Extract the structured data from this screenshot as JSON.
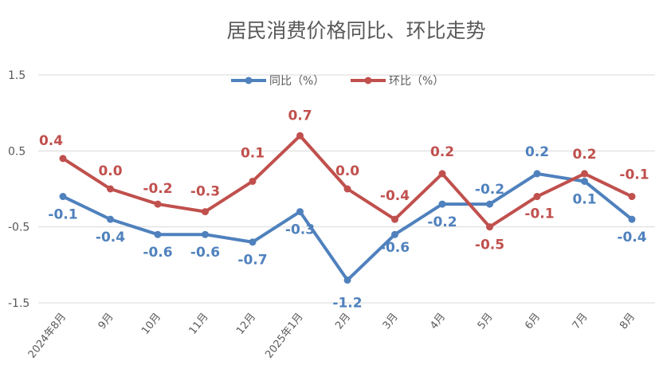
{
  "chart_data": {
    "type": "line",
    "title": "居民消费价格同比、环比走势",
    "categories": [
      "2024年8月",
      "9月",
      "10月",
      "11月",
      "12月",
      "2025年1月",
      "2月",
      "3月",
      "4月",
      "5月",
      "6月",
      "7月",
      "8月"
    ],
    "ylim": [
      -1.5,
      1.5
    ],
    "yticks": [
      "1.5",
      "0.5",
      "-0.5",
      "-1.5"
    ],
    "grid": true,
    "legend_position": "top",
    "series": [
      {
        "name": "同比（%）",
        "color": "#4F81BD",
        "values": [
          -0.1,
          -0.4,
          -0.6,
          -0.6,
          -0.7,
          -0.3,
          -1.2,
          -0.6,
          -0.2,
          -0.2,
          0.2,
          0.1,
          -0.4
        ],
        "labels": [
          "-0.1",
          "-0.4",
          "-0.6",
          "-0.6",
          "-0.7",
          "-0.3",
          "-1.2",
          "-0.6",
          "-0.2",
          "-0.2",
          "0.2",
          "0.1",
          "-0.4"
        ]
      },
      {
        "name": "环比（%）",
        "color": "#C0504D",
        "values": [
          0.4,
          0.0,
          -0.2,
          -0.3,
          0.1,
          0.7,
          0.0,
          -0.4,
          0.2,
          -0.5,
          -0.1,
          0.2,
          -0.1
        ],
        "labels": [
          "0.4",
          "0.0",
          "-0.2",
          "-0.3",
          "0.1",
          "0.7",
          "0.0",
          "-0.4",
          "0.2",
          "-0.5",
          "-0.1",
          "0.2",
          "-0.1"
        ]
      }
    ]
  }
}
